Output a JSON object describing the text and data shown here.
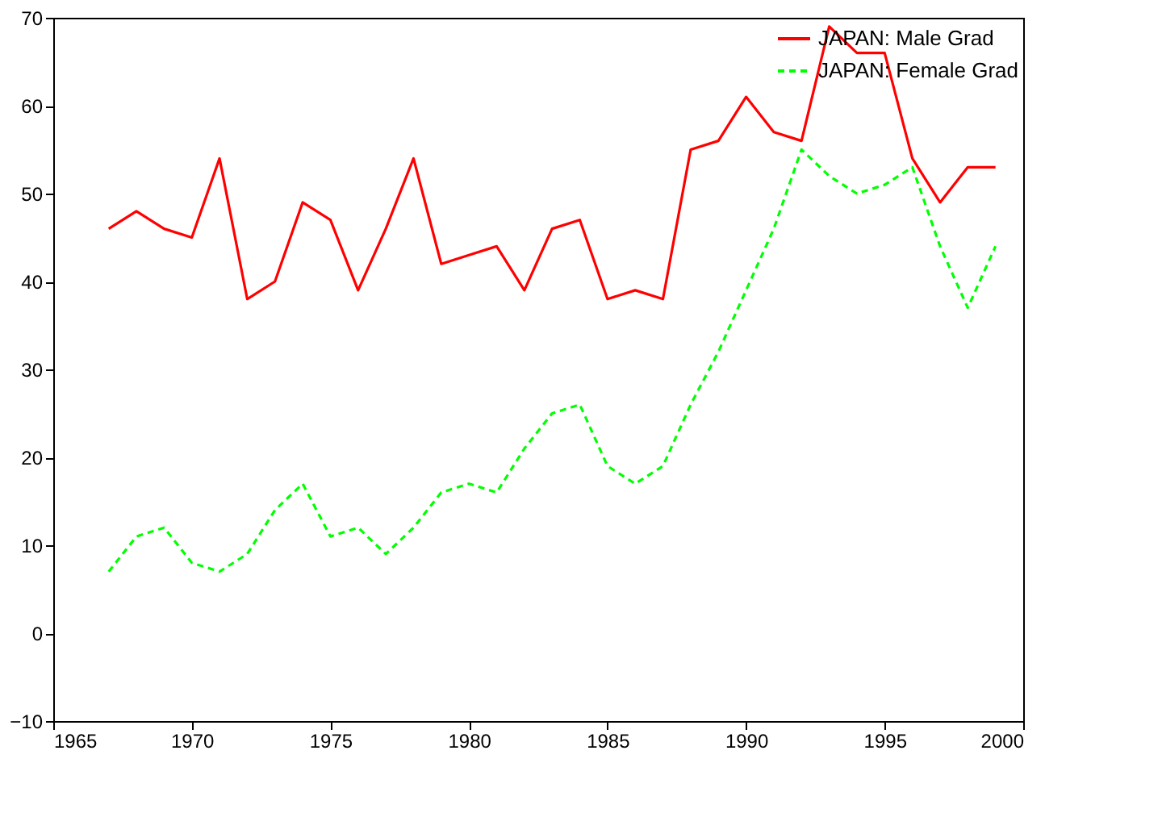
{
  "chart_data": {
    "type": "line",
    "x": [
      1967,
      1968,
      1969,
      1970,
      1971,
      1972,
      1973,
      1974,
      1975,
      1976,
      1977,
      1978,
      1979,
      1980,
      1981,
      1982,
      1983,
      1984,
      1985,
      1986,
      1987,
      1988,
      1989,
      1990,
      1991,
      1992,
      1993,
      1994,
      1995,
      1996,
      1997,
      1998,
      1999
    ],
    "series": [
      {
        "name": "JAPAN: Male Grad",
        "color": "#ff0000",
        "line_style": "solid",
        "values": [
          46,
          48,
          46,
          45,
          54,
          38,
          40,
          49,
          47,
          39,
          46,
          54,
          42,
          43,
          44,
          39,
          46,
          47,
          38,
          39,
          38,
          55,
          56,
          61,
          57,
          56,
          69,
          66,
          66,
          54,
          49,
          53,
          53
        ]
      },
      {
        "name": "JAPAN: Female Grad",
        "color": "#00ff00",
        "line_style": "dashed",
        "values": [
          7,
          11,
          12,
          8,
          7,
          9,
          14,
          17,
          11,
          12,
          9,
          12,
          16,
          17,
          16,
          21,
          25,
          26,
          19,
          17,
          19,
          26,
          32,
          39,
          46,
          55,
          52,
          50,
          51,
          53,
          44,
          37,
          44
        ]
      }
    ],
    "xlim": [
      1965,
      2000
    ],
    "xticks": [
      1965,
      1970,
      1975,
      1980,
      1985,
      1990,
      1995,
      2000
    ],
    "ylim": [
      -10,
      70
    ],
    "yticks": [
      -10,
      0,
      10,
      20,
      30,
      40,
      50,
      60,
      70
    ],
    "grid": false,
    "legend": "top right",
    "marker": "none"
  }
}
